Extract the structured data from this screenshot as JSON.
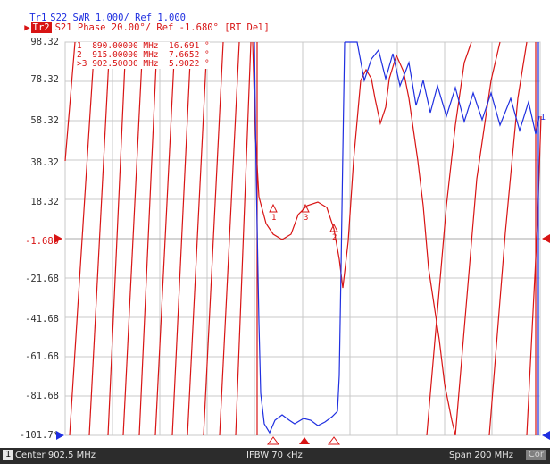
{
  "header": {
    "trace1": {
      "tag": "Tr1",
      "text": "S22 SWR 1.000/ Ref 1.000",
      "color": "#1f2fe0"
    },
    "trace2": {
      "tag": "Tr2",
      "text": "S21 Phase 20.00°/ Ref -1.680° [RT Del]",
      "color": "#d81414"
    }
  },
  "y_axis": {
    "labels": [
      "98.32",
      "78.32",
      "58.32",
      "38.32",
      "18.32",
      "-1.680",
      "-21.68",
      "-41.68",
      "-61.68",
      "-81.68",
      "-101.7*"
    ],
    "reference": "-1.680"
  },
  "markers": {
    "table": [
      {
        "num": "1",
        "freq": "890.00000 MHz",
        "value": "16.691 °"
      },
      {
        "num": "2",
        "freq": "915.00000 MHz",
        "value": "7.6652 °"
      },
      {
        "num": ">3",
        "freq": "902.50000 MHz",
        "value": "5.9022 °"
      }
    ],
    "trace_labels": [
      "1",
      "2",
      "3"
    ]
  },
  "right_label": "1",
  "status_bar": {
    "channel": "1",
    "center": "Center 902.5 MHz",
    "ifbw": "IFBW 70 kHz",
    "span": "Span 200 MHz",
    "cor": "Cor"
  },
  "colors": {
    "trace1": "#1f2fe0",
    "trace2": "#d81414",
    "grid": "#c8c8c8",
    "status_bg": "#2c2c2c"
  }
}
